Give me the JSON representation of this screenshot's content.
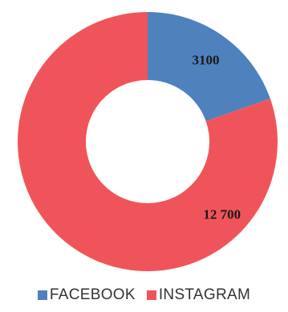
{
  "chart_data": {
    "type": "pie",
    "variant": "donut",
    "categories": [
      "FACEBOOK",
      "INSTAGRAM"
    ],
    "values": [
      3100,
      12700
    ],
    "data_labels": [
      "3100",
      "12 700"
    ],
    "colors": [
      "#4f81bd",
      "#f0545b"
    ],
    "legend": "bottom"
  }
}
